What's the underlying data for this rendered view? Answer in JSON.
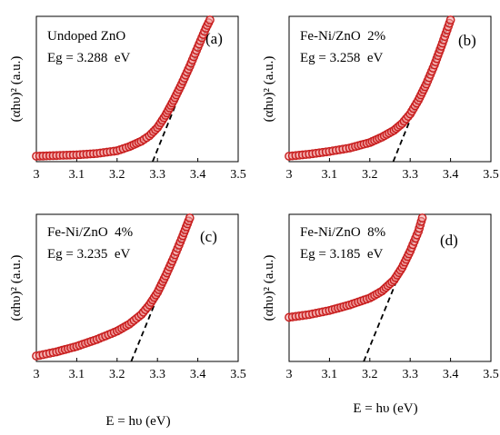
{
  "figure": {
    "x_axis_title": "E = hυ (eV)",
    "y_axis_title": "(αhυ)² (a.u.)"
  },
  "colors": {
    "marker_edge": "#c81e1e",
    "marker_fill": "#f2a0a0",
    "tangent": "#000000",
    "axis": "#000000"
  },
  "chart_data": [
    {
      "type": "scatter",
      "panel_label": "(a)",
      "sample": "Undoped ZnO",
      "eg_text": "Eg = 3.288  eV",
      "band_gap_ev": 3.288,
      "xlabel": "",
      "ylabel": "(αhυ)² (a.u.)",
      "xlim": [
        3.0,
        3.5
      ],
      "ylim": [
        0,
        1
      ],
      "x_ticks": [
        "3",
        "3.1",
        "3.2",
        "3.3",
        "3.4",
        "3.5"
      ],
      "x": [
        3.0,
        3.05,
        3.1,
        3.15,
        3.2,
        3.23,
        3.26,
        3.28,
        3.3,
        3.32,
        3.34,
        3.36,
        3.38,
        3.4,
        3.42,
        3.43
      ],
      "y": [
        0.0,
        0.005,
        0.01,
        0.02,
        0.04,
        0.07,
        0.11,
        0.15,
        0.21,
        0.3,
        0.41,
        0.53,
        0.66,
        0.8,
        0.94,
        1.0
      ],
      "tangent": {
        "x0": 3.288,
        "x1": 3.43,
        "y1": 1.0
      }
    },
    {
      "type": "scatter",
      "panel_label": "(b)",
      "sample": "Fe-Ni/ZnO  2%",
      "eg_text": "Eg = 3.258  eV",
      "band_gap_ev": 3.258,
      "xlabel": "",
      "ylabel": "(αhυ)² (a.u.)",
      "xlim": [
        3.0,
        3.5
      ],
      "ylim": [
        0,
        1
      ],
      "x_ticks": [
        "3",
        "3.1",
        "3.2",
        "3.3",
        "3.4",
        "3.5"
      ],
      "x": [
        3.0,
        3.05,
        3.1,
        3.15,
        3.2,
        3.23,
        3.26,
        3.28,
        3.3,
        3.32,
        3.34,
        3.36,
        3.38,
        3.4
      ],
      "y": [
        0.0,
        0.015,
        0.035,
        0.06,
        0.1,
        0.14,
        0.19,
        0.24,
        0.31,
        0.41,
        0.53,
        0.67,
        0.83,
        1.0
      ],
      "tangent": {
        "x0": 3.258,
        "x1": 3.4,
        "y1": 1.0
      }
    },
    {
      "type": "scatter",
      "panel_label": "(c)",
      "sample": "Fe-Ni/ZnO  4%",
      "eg_text": "Eg = 3.235  eV",
      "band_gap_ev": 3.235,
      "xlabel": "",
      "ylabel": "(αhυ)² (a.u.)",
      "xlim": [
        3.0,
        3.5
      ],
      "ylim": [
        0,
        1
      ],
      "x_ticks": [
        "3",
        "3.1",
        "3.2",
        "3.3",
        "3.4",
        "3.5"
      ],
      "x": [
        3.0,
        3.05,
        3.1,
        3.15,
        3.2,
        3.23,
        3.26,
        3.28,
        3.3,
        3.32,
        3.34,
        3.36,
        3.38
      ],
      "y": [
        0.0,
        0.03,
        0.07,
        0.12,
        0.18,
        0.23,
        0.3,
        0.37,
        0.46,
        0.58,
        0.71,
        0.85,
        1.0
      ],
      "tangent": {
        "x0": 3.235,
        "x1": 3.38,
        "y1": 1.0
      }
    },
    {
      "type": "scatter",
      "panel_label": "(d)",
      "sample": "Fe-Ni/ZnO  8%",
      "eg_text": "Eg = 3.185  eV",
      "band_gap_ev": 3.185,
      "xlabel": "",
      "ylabel": "(αhυ)² (a.u.)",
      "xlim": [
        3.0,
        3.5
      ],
      "ylim": [
        0,
        1
      ],
      "x_ticks": [
        "3",
        "3.1",
        "3.2",
        "3.3",
        "3.4",
        "3.5"
      ],
      "x": [
        3.0,
        3.05,
        3.1,
        3.15,
        3.2,
        3.23,
        3.26,
        3.28,
        3.3,
        3.32,
        3.33
      ],
      "y": [
        0.28,
        0.3,
        0.33,
        0.37,
        0.42,
        0.47,
        0.55,
        0.64,
        0.76,
        0.9,
        1.0
      ],
      "tangent": {
        "x0": 3.185,
        "x1": 3.33,
        "y1": 1.0
      }
    }
  ]
}
